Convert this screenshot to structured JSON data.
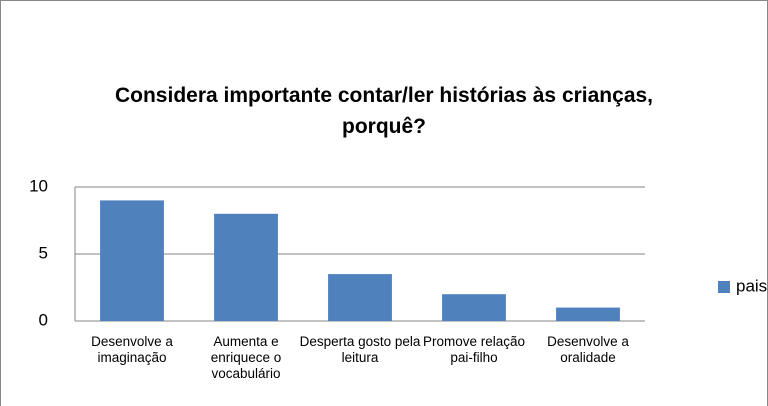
{
  "chart_data": {
    "type": "bar",
    "title": "Considera importante contar/ler histórias às crianças, porquê?",
    "categories": [
      "Desenvolve a imaginação",
      "Aumenta e enriquece o vocabulário",
      "Desperta gosto pela leitura",
      "Promove relação pai-filho",
      "Desenvolve a oralidade"
    ],
    "series": [
      {
        "name": "pais",
        "color": "#4f81bd",
        "values": [
          9,
          8,
          3.5,
          2,
          1
        ]
      }
    ],
    "ylim": [
      0,
      10
    ],
    "yticks": [
      0,
      5,
      10
    ],
    "grid": true,
    "legend": "right"
  }
}
